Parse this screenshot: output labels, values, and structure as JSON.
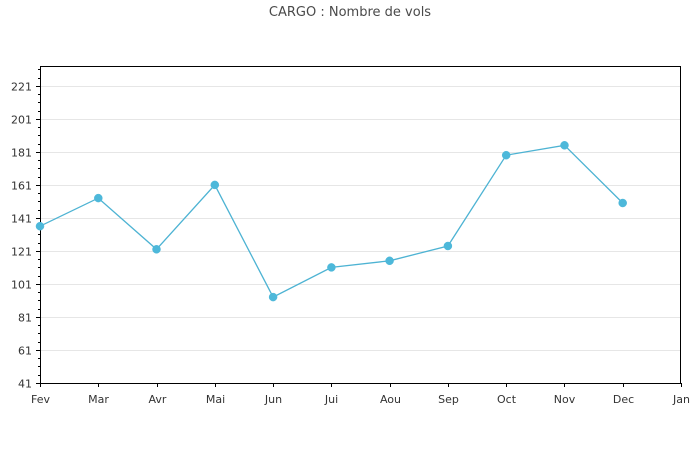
{
  "chart_data": {
    "type": "line",
    "title": "CARGO : Nombre de vols",
    "xlabel": "",
    "ylabel": "",
    "categories": [
      "Fev",
      "Mar",
      "Avr",
      "Mai",
      "Jun",
      "Jui",
      "Aou",
      "Sep",
      "Oct",
      "Nov",
      "Dec",
      "Jan"
    ],
    "series": [
      {
        "values": [
          136,
          153,
          122,
          161,
          93,
          111,
          115,
          124,
          179,
          185,
          150,
          null
        ]
      }
    ],
    "ylim": [
      41,
      233
    ],
    "yticks": [
      41,
      61,
      81,
      101,
      121,
      141,
      161,
      181,
      201,
      221
    ],
    "grid": true,
    "legend": "none",
    "colors": {
      "line": "#4db3d3",
      "marker": "#4db8da",
      "grid": "#e6e6e6",
      "axis": "#000000",
      "tick_label": "#333333"
    }
  }
}
